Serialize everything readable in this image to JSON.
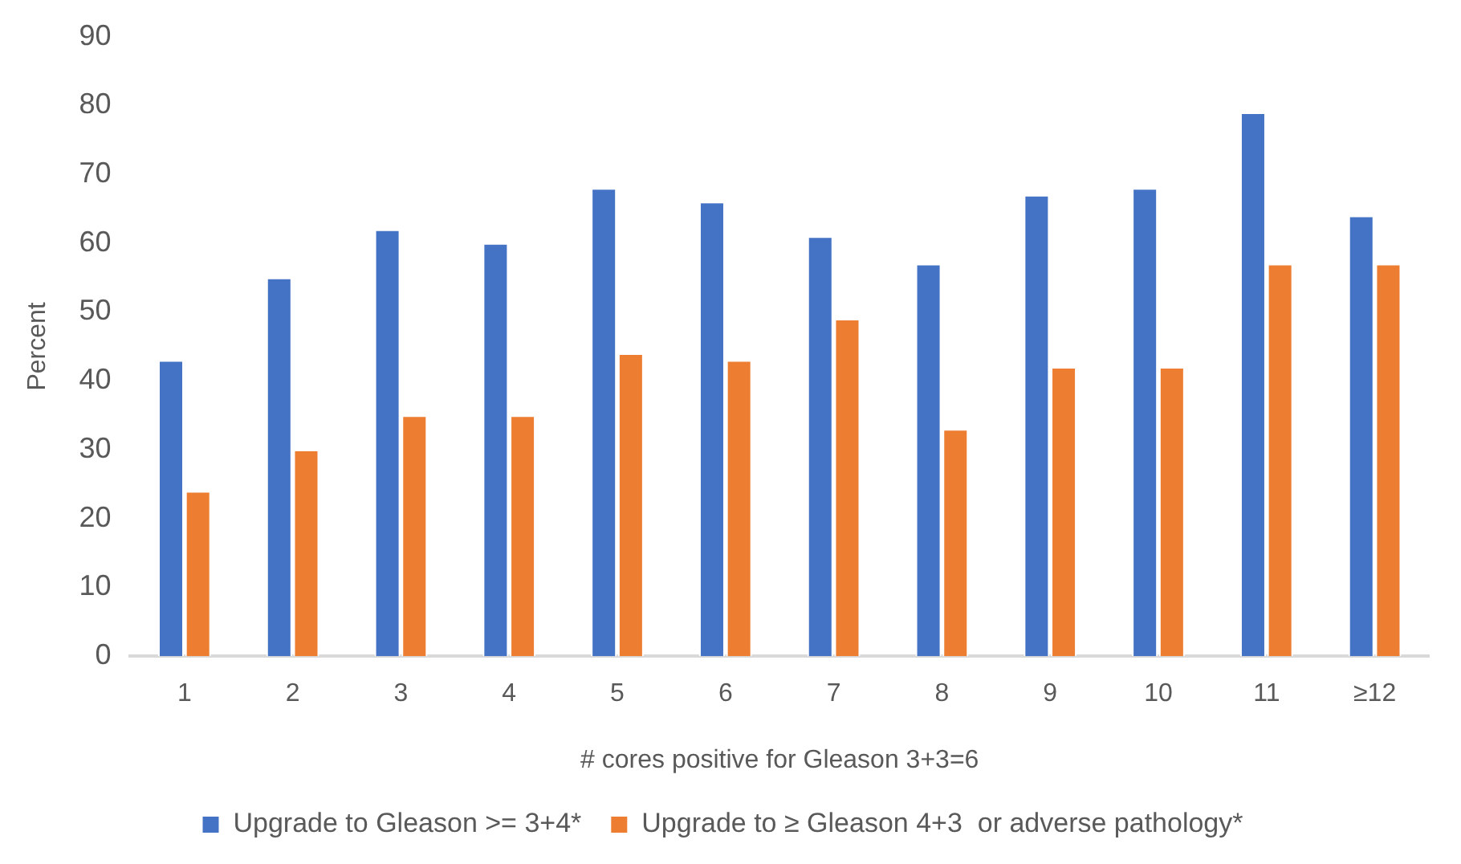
{
  "chart_data": {
    "type": "bar",
    "xlabel": "# cores positive for Gleason 3+3=6",
    "ylabel": "Percent",
    "categories": [
      "1",
      "2",
      "3",
      "4",
      "5",
      "6",
      "7",
      "8",
      "9",
      "10",
      "11",
      "≥12"
    ],
    "series": [
      {
        "name": "Upgrade to Gleason >= 3+4*",
        "color": "#4472c4",
        "values": [
          43,
          55,
          62,
          60,
          68,
          66,
          61,
          57,
          67,
          68,
          79,
          64
        ]
      },
      {
        "name": "Upgrade to ≥ Gleason 4+3  or adverse pathology*",
        "color": "#ed7d31",
        "values": [
          24,
          30,
          35,
          35,
          44,
          43,
          49,
          33,
          42,
          42,
          57,
          57
        ]
      }
    ],
    "ylim": [
      0,
      90
    ],
    "yticks": [
      0,
      10,
      20,
      30,
      40,
      50,
      60,
      70,
      80,
      90
    ],
    "grid": false,
    "legend": "bottom"
  }
}
